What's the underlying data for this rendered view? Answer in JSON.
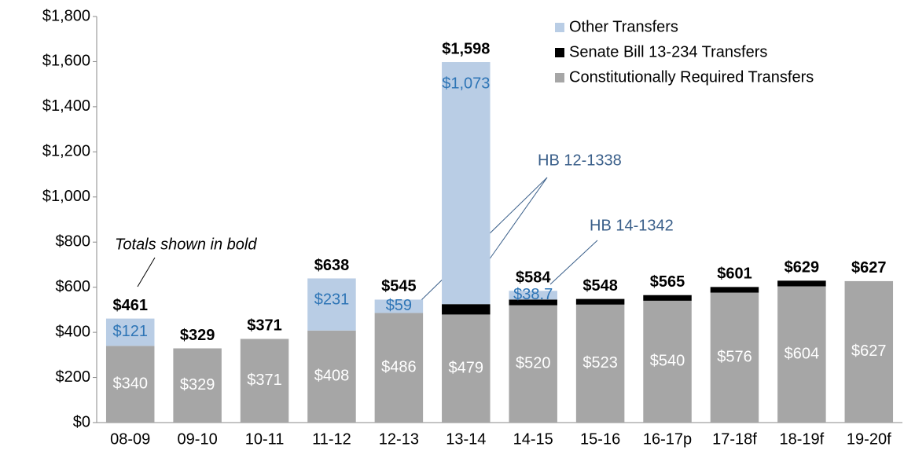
{
  "chart_data": {
    "type": "stacked_bar",
    "categories": [
      "08-09",
      "09-10",
      "10-11",
      "11-12",
      "12-13",
      "13-14",
      "14-15",
      "15-16",
      "16-17p",
      "17-18f",
      "18-19f",
      "19-20f"
    ],
    "series": [
      {
        "name": "Constitutionally Required Transfers",
        "color": "#a6a6a6",
        "values": [
          340,
          329,
          371,
          408,
          486,
          479,
          520,
          523,
          540,
          576,
          604,
          627
        ],
        "value_labels": [
          "$340",
          "$329",
          "$371",
          "$408",
          "$486",
          "$479",
          "$520",
          "$523",
          "$540",
          "$576",
          "$604",
          "$627"
        ]
      },
      {
        "name": "Senate Bill 13-234 Transfers",
        "color": "#000000",
        "values": [
          0,
          0,
          0,
          0,
          0,
          46,
          25.3,
          25,
          25,
          25,
          25,
          0
        ]
      },
      {
        "name": "Other Transfers",
        "color": "#b9cde5",
        "values": [
          121,
          0,
          0,
          231,
          59,
          1073,
          38.7,
          0,
          0,
          0,
          0,
          0
        ],
        "value_labels": [
          "$121",
          null,
          null,
          "$231",
          "$59",
          "$1,073",
          "$38.7",
          null,
          null,
          null,
          null,
          null
        ]
      }
    ],
    "totals": [
      461,
      329,
      371,
      638,
      545,
      1598,
      584,
      548,
      565,
      601,
      629,
      627
    ],
    "total_labels": [
      "$461",
      "$329",
      "$371",
      "$638",
      "$545",
      "$1,598",
      "$584",
      "$548",
      "$565",
      "$601",
      "$629",
      "$627"
    ],
    "annotations": [
      "Totals shown in bold",
      "HB 12-1338",
      "HB 14-1342"
    ],
    "ylim": [
      0,
      1800
    ],
    "yticks": [
      {
        "value": 0,
        "label": "$0"
      },
      {
        "value": 200,
        "label": "$200"
      },
      {
        "value": 400,
        "label": "$400"
      },
      {
        "value": 600,
        "label": "$600"
      },
      {
        "value": 800,
        "label": "$800"
      },
      {
        "value": 1000,
        "label": "$1,000"
      },
      {
        "value": 1200,
        "label": "$1,200"
      },
      {
        "value": 1400,
        "label": "$1,400"
      },
      {
        "value": 1600,
        "label": "$1,600"
      },
      {
        "value": 1800,
        "label": "$1,800"
      }
    ],
    "legend": "upper right",
    "grid": false
  }
}
